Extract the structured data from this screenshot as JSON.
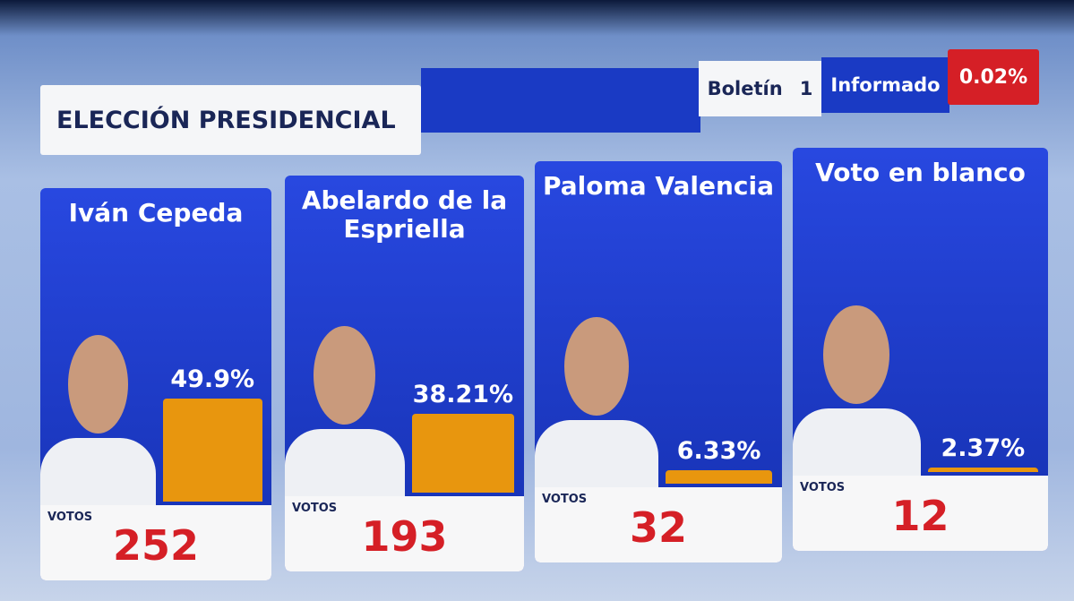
{
  "chart_data": {
    "type": "bar",
    "title": "ELECCIÓN PRESIDENCIAL",
    "bulletin_label": "Boletín",
    "bulletin": "1",
    "reported_label": "Informado",
    "reported": "0.02%",
    "categories": [
      "Iván Cepeda",
      "Abelardo de la Espriella",
      "Paloma Valencia",
      "Voto en blanco"
    ],
    "values": [
      49.9,
      38.21,
      6.33,
      2.37
    ],
    "value_labels": [
      "49.9%",
      "38.21%",
      "6.33%",
      "2.37%"
    ],
    "votes_label": "VOTOS",
    "votes": [
      252,
      193,
      32,
      12
    ],
    "color": "#e8960e"
  }
}
